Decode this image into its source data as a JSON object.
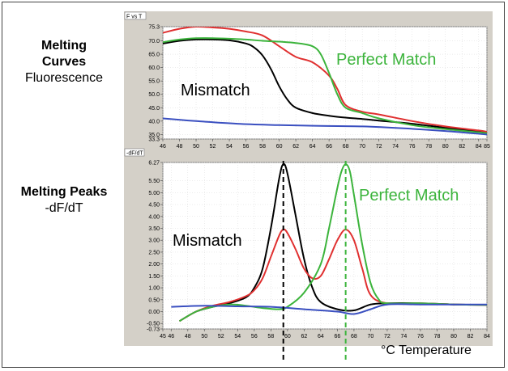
{
  "labels": {
    "top_title": "Melting",
    "top_title2": "Curves",
    "top_sub": "Fluorescence",
    "bottom_title": "Melting Peaks",
    "bottom_sub": "-dF/dT",
    "top_header": "F vs T",
    "bottom_header": "-dF/dT",
    "x_label": "°C Temperature"
  },
  "chart_data": [
    {
      "type": "line",
      "title": "Melting Curves",
      "ylabel": "Fluorescence",
      "xlim": [
        46,
        85
      ],
      "ylim": [
        33.3,
        75.3
      ],
      "x_ticks": [
        46,
        48,
        50,
        52,
        54,
        56,
        58,
        60,
        62,
        64,
        66,
        68,
        70,
        72,
        74,
        76,
        78,
        80,
        82,
        84,
        85
      ],
      "y_ticks": [
        "75.3",
        "70.0",
        "65.0",
        "60.0",
        "55.0",
        "50.0",
        "45.0",
        "40.0",
        "35.0",
        "33.3"
      ],
      "annotations": [
        {
          "text": "Mismatch",
          "color": "#000000"
        },
        {
          "text": "Perfect Match",
          "color": "#3cb43c"
        }
      ],
      "series": [
        {
          "color": "#000000",
          "x": [
            46,
            48,
            50,
            52,
            54,
            56,
            57,
            58,
            59,
            60,
            61,
            62,
            64,
            66,
            68,
            70,
            72,
            76,
            80,
            84,
            85
          ],
          "y": [
            69,
            70,
            70.5,
            70.5,
            70.2,
            69,
            67.5,
            64.5,
            59.5,
            53,
            48,
            45,
            43,
            42,
            41.3,
            40.8,
            40.2,
            39,
            37.5,
            36,
            35.5
          ]
        },
        {
          "color": "#e03030",
          "x": [
            46,
            48,
            50,
            52,
            54,
            56,
            58,
            60,
            62,
            64,
            66,
            67,
            68,
            70,
            72,
            76,
            80,
            84,
            85
          ],
          "y": [
            73,
            74.5,
            75.3,
            75,
            74.5,
            73.5,
            72,
            68,
            64,
            62,
            57,
            52,
            46,
            43.5,
            42.5,
            40,
            38,
            36.5,
            36
          ]
        },
        {
          "color": "#3cb43c",
          "x": [
            46,
            48,
            50,
            52,
            54,
            56,
            58,
            60,
            62,
            64,
            65,
            66,
            67,
            68,
            70,
            72,
            76,
            80,
            84,
            85
          ],
          "y": [
            69.5,
            70.5,
            71,
            71,
            70.8,
            70.5,
            70,
            69.7,
            69.2,
            68,
            65,
            58,
            50,
            45,
            43,
            41,
            38.5,
            37,
            35.8,
            35.5
          ]
        },
        {
          "color": "#3a4fc0",
          "x": [
            46,
            50,
            55,
            60,
            65,
            70,
            75,
            80,
            85
          ],
          "y": [
            41,
            40,
            39,
            38.5,
            38.2,
            38,
            37.3,
            36.3,
            35
          ]
        }
      ]
    },
    {
      "type": "line",
      "title": "Melting Peaks",
      "ylabel": "-dF/dT",
      "xlim": [
        45,
        84
      ],
      "ylim": [
        -0.73,
        6.27
      ],
      "x_ticks": [
        45,
        46,
        48,
        50,
        52,
        54,
        56,
        58,
        60,
        62,
        64,
        66,
        68,
        70,
        72,
        74,
        76,
        78,
        80,
        82,
        84
      ],
      "y_ticks": [
        "6.27",
        "5.50",
        "5.00",
        "4.50",
        "4.00",
        "3.50",
        "3.00",
        "2.50",
        "2.00",
        "1.50",
        "1.00",
        "0.50",
        "0.00",
        "-0.50",
        "-0.73"
      ],
      "annotations": [
        {
          "text": "Mismatch",
          "color": "#000000"
        },
        {
          "text": "Perfect Match",
          "color": "#3cb43c"
        }
      ],
      "markers": [
        {
          "x": 59.5,
          "color": "#000000"
        },
        {
          "x": 67,
          "color": "#3cb43c"
        }
      ],
      "series": [
        {
          "color": "#000000",
          "x": [
            47,
            49,
            51,
            53,
            55,
            56,
            57,
            58,
            59,
            59.5,
            60,
            61,
            62,
            63,
            64,
            66,
            68,
            70,
            72,
            76,
            80,
            84
          ],
          "y": [
            -0.4,
            0,
            0.2,
            0.35,
            0.6,
            1.0,
            1.8,
            3.5,
            5.6,
            6.2,
            5.8,
            4.0,
            2.2,
            1.0,
            0.4,
            0.1,
            0.05,
            0.3,
            0.35,
            0.35,
            0.3,
            0.28
          ]
        },
        {
          "color": "#e03030",
          "x": [
            47,
            49,
            51,
            53,
            55,
            56,
            57,
            58,
            59,
            59.5,
            60,
            61,
            62,
            63,
            64,
            65,
            66,
            67,
            68,
            69,
            70,
            72,
            76,
            80,
            84
          ],
          "y": [
            -0.4,
            0,
            0.25,
            0.4,
            0.65,
            0.9,
            1.4,
            2.3,
            3.2,
            3.45,
            3.3,
            2.6,
            1.8,
            1.4,
            1.5,
            2.2,
            3.0,
            3.45,
            3.0,
            1.8,
            0.7,
            0.35,
            0.35,
            0.3,
            0.28
          ]
        },
        {
          "color": "#3cb43c",
          "x": [
            47,
            49,
            51,
            53,
            55,
            57,
            59,
            60,
            62,
            64,
            65,
            66,
            66.5,
            67,
            67.5,
            68,
            69,
            70,
            71,
            72,
            76,
            80,
            84
          ],
          "y": [
            -0.4,
            0,
            0.2,
            0.3,
            0.25,
            0.15,
            0.1,
            0.2,
            0.8,
            2.0,
            3.5,
            5.2,
            5.9,
            6.2,
            5.9,
            4.9,
            2.8,
            1.2,
            0.5,
            0.35,
            0.35,
            0.3,
            0.28
          ]
        },
        {
          "color": "#3a4fc0",
          "x": [
            46,
            50,
            54,
            58,
            62,
            66,
            68,
            70,
            72,
            76,
            80,
            84
          ],
          "y": [
            0.2,
            0.25,
            0.22,
            0.2,
            0.1,
            0,
            -0.1,
            0.1,
            0.3,
            0.3,
            0.3,
            0.3
          ]
        }
      ]
    }
  ]
}
